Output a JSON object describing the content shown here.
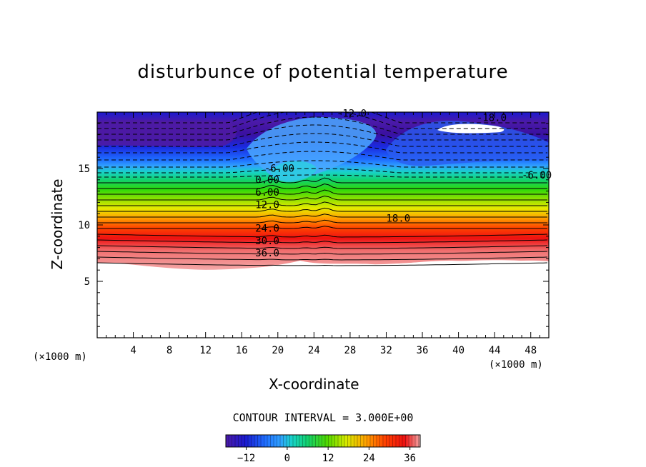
{
  "chart_data": {
    "type": "heatmap",
    "title": "disturbunce of potential temperature",
    "xlabel": "X-coordinate",
    "ylabel": "Z-coordinate",
    "x_unit_left": "(×1000 m)",
    "x_unit_right": "(×1000 m)",
    "xlim": [
      0,
      50
    ],
    "ylim": [
      0,
      20
    ],
    "x_ticks": [
      4,
      8,
      12,
      16,
      20,
      24,
      28,
      32,
      36,
      40,
      44,
      48
    ],
    "y_ticks": [
      5,
      10,
      15
    ],
    "contour_interval_text": "CONTOUR INTERVAL = 3.000E+00",
    "colorbar_ticks": [
      -12,
      0,
      12,
      24,
      36
    ],
    "colorbar_range": [
      -18,
      39
    ],
    "contour_labels": [
      {
        "text": "-12.0",
        "x": 26.5,
        "y": 19.6
      },
      {
        "text": "-18.0",
        "x": 42.0,
        "y": 19.2
      },
      {
        "text": "-6.00",
        "x": 18.5,
        "y": 14.7
      },
      {
        "text": "-6.00",
        "x": 47.0,
        "y": 14.1
      },
      {
        "text": "0.00",
        "x": 17.5,
        "y": 13.7
      },
      {
        "text": "6.00",
        "x": 17.5,
        "y": 12.6
      },
      {
        "text": "12.0",
        "x": 17.5,
        "y": 11.5
      },
      {
        "text": "18.0",
        "x": 32.0,
        "y": 10.3
      },
      {
        "text": "24.0",
        "x": 17.5,
        "y": 9.4
      },
      {
        "text": "30.0",
        "x": 17.5,
        "y": 8.3
      },
      {
        "text": "36.0",
        "x": 17.5,
        "y": 7.2
      }
    ],
    "legend": "bottom",
    "grid": false
  }
}
